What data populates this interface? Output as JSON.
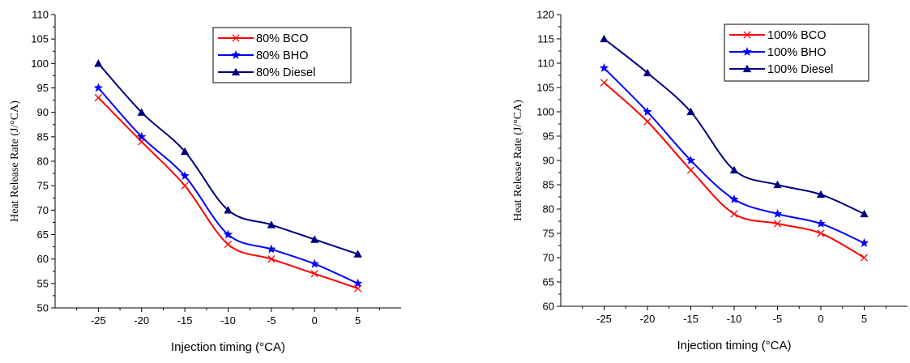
{
  "chart_data": [
    {
      "type": "line",
      "title": "",
      "xlabel": "Injection timing (°CA)",
      "ylabel": "Heat Release Rate (J/°CA)",
      "x": [
        -25,
        -20,
        -15,
        -10,
        -5,
        0,
        5
      ],
      "xticks": [
        "-25",
        "-20",
        "-15",
        "-10",
        "-5",
        "0",
        "5"
      ],
      "xlim": [
        -30,
        10
      ],
      "ylim": [
        50,
        110
      ],
      "yticks": [
        "50",
        "55",
        "60",
        "65",
        "70",
        "75",
        "80",
        "85",
        "90",
        "95",
        "100",
        "105",
        "110"
      ],
      "grid": false,
      "legend": "top-right",
      "series": [
        {
          "name": "80% BCO",
          "values": [
            93,
            84,
            75,
            63,
            60,
            57,
            54
          ],
          "color": "#ff0000",
          "marker": "x"
        },
        {
          "name": "80% BHO",
          "values": [
            95,
            85,
            77,
            65,
            62,
            59,
            55
          ],
          "color": "#0000ff",
          "marker": "star"
        },
        {
          "name": "80% Diesel",
          "values": [
            100,
            90,
            82,
            70,
            67,
            64,
            61
          ],
          "color": "#000080",
          "marker": "triangle"
        }
      ]
    },
    {
      "type": "line",
      "title": "",
      "xlabel": "Injection timing (°CA)",
      "ylabel": "Heat Release Rate (J/°CA)",
      "x": [
        -25,
        -20,
        -15,
        -10,
        -5,
        0,
        5
      ],
      "xticks": [
        "-25",
        "-20",
        "-15",
        "-10",
        "-5",
        "0",
        "5"
      ],
      "xlim": [
        -30,
        10
      ],
      "ylim": [
        60,
        120
      ],
      "yticks": [
        "60",
        "65",
        "70",
        "75",
        "80",
        "85",
        "90",
        "95",
        "100",
        "105",
        "110",
        "115",
        "120"
      ],
      "grid": false,
      "legend": "top-right",
      "series": [
        {
          "name": "100% BCO",
          "values": [
            106,
            98,
            88,
            79,
            77,
            75,
            70
          ],
          "color": "#ff0000",
          "marker": "x"
        },
        {
          "name": "100% BHO",
          "values": [
            109,
            100,
            90,
            82,
            79,
            77,
            73
          ],
          "color": "#0000ff",
          "marker": "star"
        },
        {
          "name": "100% Diesel",
          "values": [
            115,
            108,
            100,
            88,
            85,
            83,
            79
          ],
          "color": "#000080",
          "marker": "triangle"
        }
      ]
    }
  ]
}
